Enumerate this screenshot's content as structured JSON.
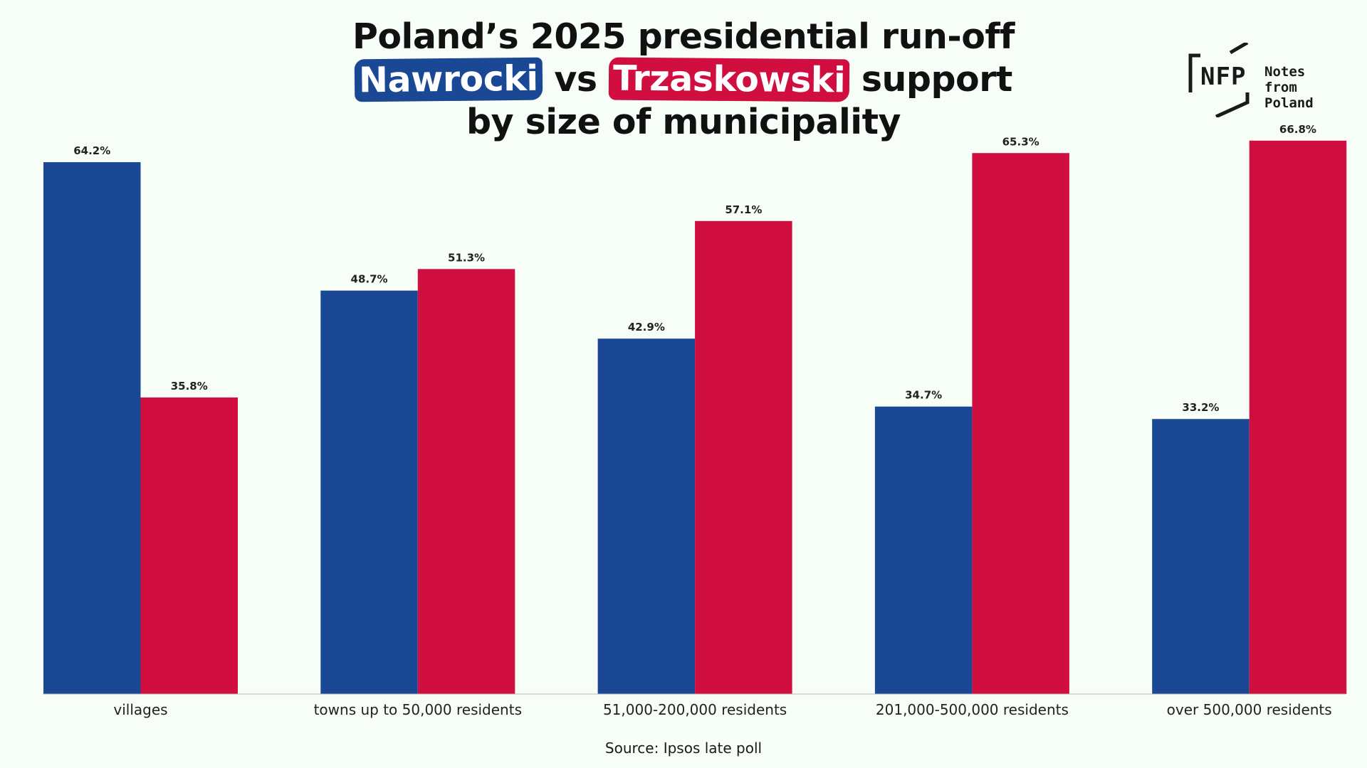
{
  "title": {
    "line1": "Poland’s 2025 presidential run-off",
    "candidate_a": "Nawrocki",
    "vs": "vs",
    "candidate_b": "Trzaskowski",
    "support": "support",
    "line3": "by size of municipality"
  },
  "logo": {
    "mark": "NFP",
    "brand_line1": "Notes from",
    "brand_line2": "Poland"
  },
  "source": "Source: Ipsos late poll",
  "colors": {
    "nawrocki": "#1b4894",
    "trzaskowski": "#d00e40",
    "background": "#f7fdf7"
  },
  "chart_data": {
    "type": "bar",
    "categories": [
      "villages",
      "towns up to 50,000 residents",
      "51,000-200,000 residents",
      "201,000-500,000 residents",
      "over 500,000 residents"
    ],
    "series": [
      {
        "name": "Nawrocki",
        "values": [
          64.2,
          48.7,
          42.9,
          34.7,
          33.2
        ],
        "labels": [
          "64.2%",
          "48.7%",
          "42.9%",
          "34.7%",
          "33.2%"
        ]
      },
      {
        "name": "Trzaskowski",
        "values": [
          35.8,
          51.3,
          57.1,
          65.3,
          66.8
        ],
        "labels": [
          "35.8%",
          "51.3%",
          "57.1%",
          "65.3%",
          "66.8%"
        ]
      }
    ],
    "title": "Poland’s 2025 presidential run-off Nawrocki vs Trzaskowski support by size of municipality",
    "xlabel": "",
    "ylabel": "",
    "ylim": [
      0,
      70
    ],
    "grid": false,
    "legend": "none"
  }
}
